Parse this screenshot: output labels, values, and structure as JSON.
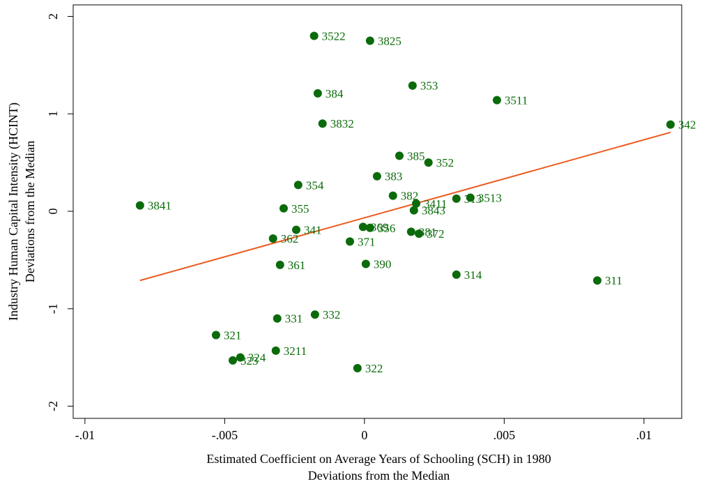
{
  "chart_data": {
    "type": "scatter",
    "x": [
      -0.0018,
      0.0002,
      -0.00167,
      0.00172,
      0.00474,
      -0.0015,
      0.01095,
      0.00125,
      0.00229,
      0.00045,
      -0.00237,
      0.00102,
      -0.00803,
      0.00185,
      0.00379,
      0.00329,
      0.00177,
      -0.00289,
      -0.00244,
      -5e-05,
      0.0002,
      -0.00327,
      -0.00052,
      0.00167,
      0.00195,
      -0.00302,
      5e-05,
      0.00329,
      0.00833,
      -0.00177,
      -0.00312,
      -0.00531,
      -0.00317,
      -0.00444,
      -0.00471,
      -0.00025
    ],
    "y": [
      1.8,
      1.75,
      1.21,
      1.29,
      1.14,
      0.9,
      0.89,
      0.57,
      0.5,
      0.36,
      0.27,
      0.16,
      0.06,
      0.08,
      0.14,
      0.13,
      0.01,
      0.03,
      -0.19,
      -0.16,
      -0.17,
      -0.28,
      -0.31,
      -0.21,
      -0.23,
      -0.55,
      -0.54,
      -0.65,
      -0.71,
      -1.06,
      -1.1,
      -1.27,
      -1.43,
      -1.5,
      -1.53,
      -1.61
    ],
    "point_labels": [
      "3522",
      "3825",
      "384",
      "353",
      "3511",
      "3832",
      "342",
      "385",
      "352",
      "383",
      "354",
      "382",
      "3841",
      "3411",
      "3513",
      "313",
      "3843",
      "355",
      "341",
      "369",
      "356",
      "362",
      "371",
      "381",
      "372",
      "361",
      "390",
      "314",
      "311",
      "332",
      "331",
      "321",
      "3211",
      "324",
      "323",
      "322"
    ],
    "color": "#0b6b0b",
    "fit": {
      "x": [
        -0.00803,
        0.01095
      ],
      "y": [
        -0.71,
        0.81
      ],
      "color": "#ec5a1e"
    },
    "xlim": [
      -0.01042,
      0.01135
    ],
    "ylim": [
      -2.125,
      2.118
    ],
    "xticks": [
      {
        "value": -0.01,
        "label": "-.01"
      },
      {
        "value": -0.005,
        "label": "-.005"
      },
      0,
      {
        "value": 0.005,
        "label": ".005"
      },
      {
        "value": 0.01,
        "label": ".01"
      }
    ],
    "yticks": [
      2,
      1,
      0,
      -1,
      -2
    ],
    "xlabel": [
      "Estimated Coefficient on Average Years of Schooling (SCH) in 1980",
      "Deviations from the Median"
    ],
    "ylabel": [
      "Industry Human Capital Intensity (HCINT)",
      "Deviations from the Median"
    ]
  }
}
